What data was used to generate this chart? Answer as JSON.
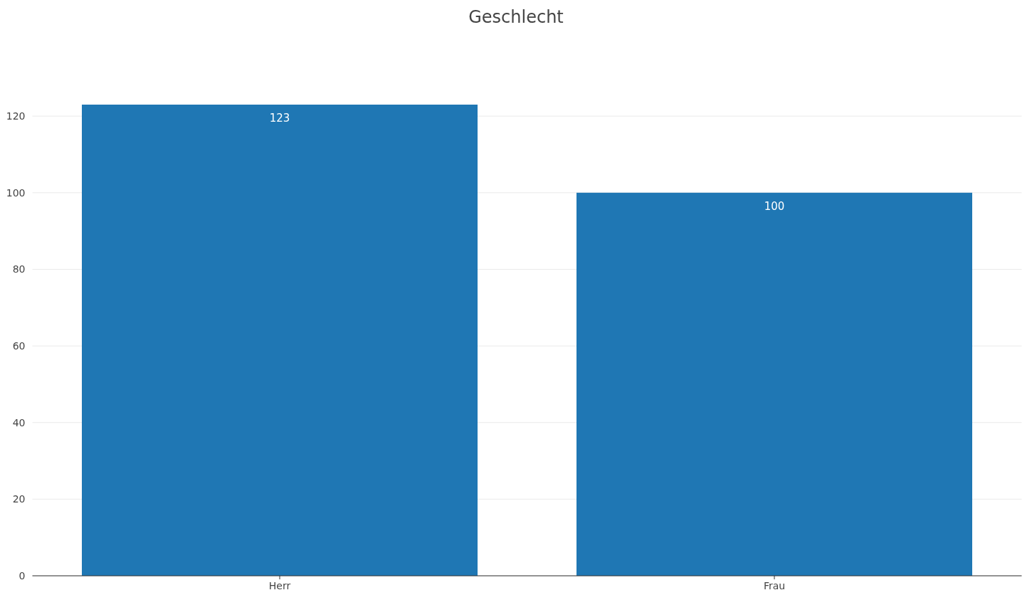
{
  "chart_data": {
    "type": "bar",
    "title": "Geschlecht",
    "categories": [
      "Herr",
      "Frau"
    ],
    "values": [
      123,
      100
    ],
    "ylim": [
      0,
      123
    ],
    "color": "#1f77b4",
    "yticks": [
      0,
      20,
      40,
      60,
      80,
      100,
      120
    ],
    "grid": "y",
    "data_labels": true
  }
}
